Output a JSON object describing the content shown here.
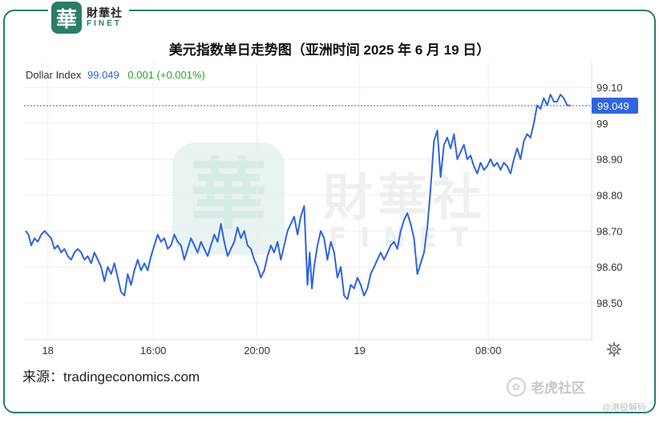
{
  "header": {
    "logo_cn": "財華社",
    "logo_en": "FINET",
    "logo_mark": "華",
    "title": "美元指数单日走势图（亚洲时间 2025 年 6 月 19 日）"
  },
  "legend": {
    "name": "Dollar Index",
    "value": "99.049",
    "change": "0.001 (+0.001%)"
  },
  "footer": {
    "source": "来源：tradingeconomics.com",
    "watermark_tiger": "老虎社区",
    "watermark_small": "@港股解码"
  },
  "watermark": {
    "cn": "財華社",
    "en": "FINET",
    "mark": "華"
  },
  "colors": {
    "line": "#2f64e0",
    "price_tag": "#2f64e0",
    "brand": "#2a7d6a",
    "change_positive": "#22a822"
  },
  "chart_data": {
    "type": "line",
    "title": "美元指数单日走势图（亚洲时间 2025 年 6 月 19 日）",
    "series": [
      {
        "name": "Dollar Index"
      }
    ],
    "x_range": [
      0,
      100
    ],
    "x_ticks": [
      {
        "x": 4,
        "label": "18"
      },
      {
        "x": 23,
        "label": "16:00"
      },
      {
        "x": 41.7,
        "label": "20:00"
      },
      {
        "x": 60.2,
        "label": "19"
      },
      {
        "x": 83.4,
        "label": "08:00"
      }
    ],
    "ylim": [
      98.42,
      99.18
    ],
    "y_ticks": [
      99.1,
      99.0,
      98.9,
      98.8,
      98.7,
      98.6,
      98.5
    ],
    "y_tick_labels": [
      "99.10",
      "99",
      "98.90",
      "98.80",
      "98.70",
      "98.60",
      "98.50"
    ],
    "last_value": 99.049,
    "last_value_label": "99.049",
    "grid": true,
    "legend_position": "top-left",
    "points": [
      [
        0,
        98.7
      ],
      [
        0.5,
        98.69
      ],
      [
        1,
        98.66
      ],
      [
        1.6,
        98.68
      ],
      [
        2.2,
        98.67
      ],
      [
        2.8,
        98.69
      ],
      [
        3.4,
        98.7
      ],
      [
        4,
        98.69
      ],
      [
        4.6,
        98.68
      ],
      [
        5.2,
        98.65
      ],
      [
        5.8,
        98.66
      ],
      [
        6.4,
        98.64
      ],
      [
        7,
        98.65
      ],
      [
        7.6,
        98.63
      ],
      [
        8.2,
        98.62
      ],
      [
        8.8,
        98.64
      ],
      [
        9.4,
        98.65
      ],
      [
        10,
        98.64
      ],
      [
        10.6,
        98.62
      ],
      [
        11.2,
        98.63
      ],
      [
        11.8,
        98.61
      ],
      [
        12.4,
        98.64
      ],
      [
        13,
        98.62
      ],
      [
        13.6,
        98.6
      ],
      [
        14.2,
        98.56
      ],
      [
        14.8,
        98.6
      ],
      [
        15.4,
        98.58
      ],
      [
        16,
        98.61
      ],
      [
        16.6,
        98.57
      ],
      [
        17.2,
        98.53
      ],
      [
        17.8,
        98.52
      ],
      [
        18.4,
        98.58
      ],
      [
        19,
        98.55
      ],
      [
        19.6,
        98.59
      ],
      [
        20.2,
        98.62
      ],
      [
        20.8,
        98.59
      ],
      [
        21.4,
        98.61
      ],
      [
        22,
        98.59
      ],
      [
        22.6,
        98.63
      ],
      [
        23.2,
        98.66
      ],
      [
        23.8,
        98.69
      ],
      [
        24.4,
        98.67
      ],
      [
        25,
        98.68
      ],
      [
        25.6,
        98.65
      ],
      [
        26.2,
        98.66
      ],
      [
        26.8,
        98.69
      ],
      [
        27.4,
        98.67
      ],
      [
        28,
        98.66
      ],
      [
        28.6,
        98.62
      ],
      [
        29.2,
        98.65
      ],
      [
        29.8,
        98.68
      ],
      [
        30.4,
        98.66
      ],
      [
        31,
        98.64
      ],
      [
        31.6,
        98.67
      ],
      [
        32.2,
        98.65
      ],
      [
        32.8,
        98.63
      ],
      [
        33.4,
        98.66
      ],
      [
        34,
        98.69
      ],
      [
        34.6,
        98.67
      ],
      [
        35.2,
        98.72
      ],
      [
        35.8,
        98.67
      ],
      [
        36.4,
        98.63
      ],
      [
        37,
        98.65
      ],
      [
        37.6,
        98.67
      ],
      [
        38.2,
        98.71
      ],
      [
        38.8,
        98.68
      ],
      [
        39.4,
        98.7
      ],
      [
        40,
        98.66
      ],
      [
        40.6,
        98.65
      ],
      [
        41.2,
        98.62
      ],
      [
        41.8,
        98.6
      ],
      [
        42.4,
        98.57
      ],
      [
        43,
        98.59
      ],
      [
        43.6,
        98.63
      ],
      [
        44.2,
        98.66
      ],
      [
        44.8,
        98.64
      ],
      [
        45.4,
        98.67
      ],
      [
        46,
        98.62
      ],
      [
        46.6,
        98.66
      ],
      [
        47.2,
        98.7
      ],
      [
        47.8,
        98.72
      ],
      [
        48.4,
        98.74
      ],
      [
        49,
        98.69
      ],
      [
        49.6,
        98.74
      ],
      [
        50.2,
        98.77
      ],
      [
        50.8,
        98.55
      ],
      [
        51.2,
        98.64
      ],
      [
        51.6,
        98.54
      ],
      [
        52,
        98.6
      ],
      [
        52.6,
        98.66
      ],
      [
        53.2,
        98.7
      ],
      [
        53.8,
        98.68
      ],
      [
        54.4,
        98.62
      ],
      [
        55,
        98.67
      ],
      [
        55.6,
        98.64
      ],
      [
        56.2,
        98.57
      ],
      [
        56.8,
        98.6
      ],
      [
        57.4,
        98.52
      ],
      [
        58,
        98.51
      ],
      [
        58.6,
        98.55
      ],
      [
        59.2,
        98.54
      ],
      [
        59.8,
        98.57
      ],
      [
        60.4,
        98.55
      ],
      [
        61,
        98.52
      ],
      [
        61.6,
        98.54
      ],
      [
        62.2,
        98.58
      ],
      [
        62.8,
        98.6
      ],
      [
        63.4,
        98.62
      ],
      [
        64,
        98.64
      ],
      [
        64.6,
        98.62
      ],
      [
        65.2,
        98.64
      ],
      [
        65.8,
        98.66
      ],
      [
        66.4,
        98.67
      ],
      [
        67,
        98.65
      ],
      [
        67.6,
        98.7
      ],
      [
        68.2,
        98.73
      ],
      [
        68.8,
        98.75
      ],
      [
        69.4,
        98.72
      ],
      [
        70,
        98.68
      ],
      [
        70.6,
        98.58
      ],
      [
        71.2,
        98.61
      ],
      [
        71.8,
        98.64
      ],
      [
        72.4,
        98.71
      ],
      [
        73,
        98.82
      ],
      [
        73.6,
        98.95
      ],
      [
        74.2,
        98.98
      ],
      [
        74.8,
        98.85
      ],
      [
        75.4,
        98.94
      ],
      [
        76,
        98.96
      ],
      [
        76.6,
        98.93
      ],
      [
        77.2,
        98.97
      ],
      [
        77.8,
        98.9
      ],
      [
        78.4,
        98.92
      ],
      [
        79,
        98.94
      ],
      [
        79.6,
        98.9
      ],
      [
        80.2,
        98.91
      ],
      [
        80.8,
        98.88
      ],
      [
        81.4,
        98.86
      ],
      [
        82,
        98.89
      ],
      [
        82.6,
        98.87
      ],
      [
        83.2,
        98.88
      ],
      [
        83.8,
        98.9
      ],
      [
        84.4,
        98.88
      ],
      [
        85,
        98.89
      ],
      [
        85.6,
        98.87
      ],
      [
        86.2,
        98.89
      ],
      [
        86.8,
        98.88
      ],
      [
        87.4,
        98.86
      ],
      [
        88,
        98.9
      ],
      [
        88.6,
        98.93
      ],
      [
        89.2,
        98.9
      ],
      [
        89.8,
        98.95
      ],
      [
        90.4,
        98.97
      ],
      [
        91,
        98.96
      ],
      [
        91.6,
        99.0
      ],
      [
        92.2,
        99.05
      ],
      [
        92.8,
        99.04
      ],
      [
        93.4,
        99.07
      ],
      [
        94,
        99.05
      ],
      [
        94.6,
        99.08
      ],
      [
        95.2,
        99.06
      ],
      [
        95.8,
        99.06
      ],
      [
        96.4,
        99.08
      ],
      [
        97,
        99.07
      ],
      [
        97.6,
        99.05
      ],
      [
        98.2,
        99.049
      ]
    ]
  }
}
